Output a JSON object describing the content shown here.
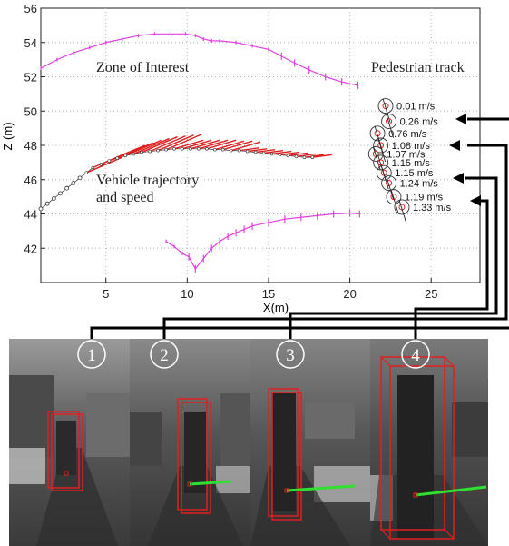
{
  "chart_data": {
    "type": "scatter",
    "xlabel": "X(m)",
    "ylabel": "Z (m)",
    "xlim": [
      1,
      28
    ],
    "ylim": [
      40,
      56
    ],
    "xticks": [
      5,
      10,
      15,
      20,
      25
    ],
    "yticks": [
      42,
      44,
      46,
      48,
      50,
      52,
      54,
      56
    ],
    "grid": true,
    "annotations": {
      "zone": "Zone of Interest",
      "pedestrian": "Pedestrian track",
      "vehicle": [
        "Vehicle trajectory",
        "and speed"
      ]
    },
    "zone_upper": {
      "x": [
        1.0,
        2.0,
        3.0,
        4.0,
        5.0,
        6.0,
        7.0,
        8.0,
        9.0,
        9.9,
        10.5,
        11.0,
        11.5,
        12.0,
        13.0,
        14.0,
        15.0,
        15.8,
        16.6,
        17.5,
        18.5,
        19.5,
        20.5
      ],
      "y": [
        52.5,
        53.0,
        53.4,
        53.7,
        54.0,
        54.2,
        54.4,
        54.5,
        54.5,
        54.5,
        54.4,
        54.2,
        54.1,
        54.1,
        54.0,
        53.8,
        53.6,
        53.2,
        52.8,
        52.4,
        52.0,
        51.7,
        51.5
      ]
    },
    "zone_lower": {
      "x": [
        8.7,
        9.2,
        9.7,
        10.1,
        10.5,
        11.0,
        11.5,
        12.0,
        12.5,
        13.0,
        13.5,
        14.0,
        15.0,
        16.0,
        17.0,
        18.0,
        19.0,
        20.0,
        20.6
      ],
      "y": [
        42.4,
        42.1,
        41.7,
        41.5,
        40.8,
        41.4,
        42.0,
        42.4,
        42.7,
        42.9,
        43.1,
        43.3,
        43.5,
        43.7,
        43.8,
        43.9,
        44.0,
        44.05,
        44.0
      ]
    },
    "vehicle_positions": {
      "x": [
        1.0,
        1.4,
        1.8,
        2.2,
        2.6,
        3.0,
        3.4,
        3.8,
        4.2,
        4.7,
        5.2,
        5.7,
        6.2,
        6.7,
        7.2,
        7.7,
        8.2,
        8.7,
        9.2,
        9.7,
        10.2,
        10.7,
        11.2,
        11.7,
        12.2,
        12.7,
        13.2,
        13.7,
        14.2,
        14.7,
        15.2,
        15.7,
        16.2,
        16.7,
        17.2,
        17.7
      ],
      "y": [
        44.3,
        44.6,
        44.9,
        45.2,
        45.5,
        45.8,
        46.1,
        46.4,
        46.7,
        46.9,
        47.1,
        47.25,
        47.4,
        47.5,
        47.6,
        47.65,
        47.7,
        47.75,
        47.8,
        47.8,
        47.8,
        47.8,
        47.8,
        47.75,
        47.75,
        47.7,
        47.7,
        47.65,
        47.6,
        47.55,
        47.5,
        47.45,
        47.4,
        47.35,
        47.3,
        47.3
      ]
    },
    "pedestrian": {
      "x": [
        22.2,
        22.4,
        21.7,
        21.9,
        21.6,
        21.9,
        22.1,
        22.4,
        22.7,
        23.2
      ],
      "y": [
        50.3,
        49.4,
        48.7,
        48.0,
        47.5,
        47.0,
        46.4,
        45.8,
        45.0,
        44.4
      ],
      "speeds": [
        "0.01 m/s",
        "0.26 m/s",
        "0.76 m/s",
        "1.08 m/s",
        "1.07 m/s",
        "1.15 m/s",
        "1.15 m/s",
        "1.24 m/s",
        "1.19 m/s",
        "1.33 m/s"
      ]
    }
  },
  "frames": [
    {
      "label": "1"
    },
    {
      "label": "2"
    },
    {
      "label": "3"
    },
    {
      "label": "4"
    }
  ],
  "colors": {
    "zone": "#e040e0",
    "vehicle": "#e02020",
    "box": "#e02020",
    "velocity": "#30e030",
    "connector": "#000000"
  }
}
